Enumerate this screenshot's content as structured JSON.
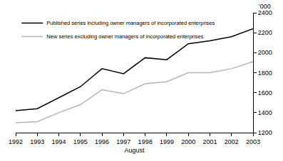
{
  "chart_data": {
    "type": "line",
    "x_label": "August",
    "y_label": "'000",
    "x": [
      1992,
      1993,
      1994,
      1995,
      1996,
      1997,
      1998,
      1999,
      2000,
      2001,
      2002,
      2003
    ],
    "xlim": [
      1992,
      2003
    ],
    "xticks": [
      1992,
      1993,
      1994,
      1995,
      1996,
      1997,
      1998,
      1999,
      2000,
      2001,
      2002,
      2003
    ],
    "ylim": [
      1200,
      2400
    ],
    "yticks": [
      1200,
      1400,
      1600,
      1800,
      2000,
      2200,
      2400
    ],
    "grid": false,
    "legend": "top-left",
    "series": [
      {
        "name": "Published series including owner managers of incorporated enterprises",
        "color": "#000000",
        "values": [
          1420,
          1440,
          1550,
          1660,
          1840,
          1790,
          1950,
          1930,
          2090,
          2120,
          2160,
          2240
        ]
      },
      {
        "name": "New series excluding owner managers of incorporated enterprises",
        "color": "#b4b4b4",
        "values": [
          1300,
          1310,
          1400,
          1480,
          1630,
          1590,
          1690,
          1710,
          1800,
          1800,
          1840,
          1910
        ]
      }
    ]
  }
}
